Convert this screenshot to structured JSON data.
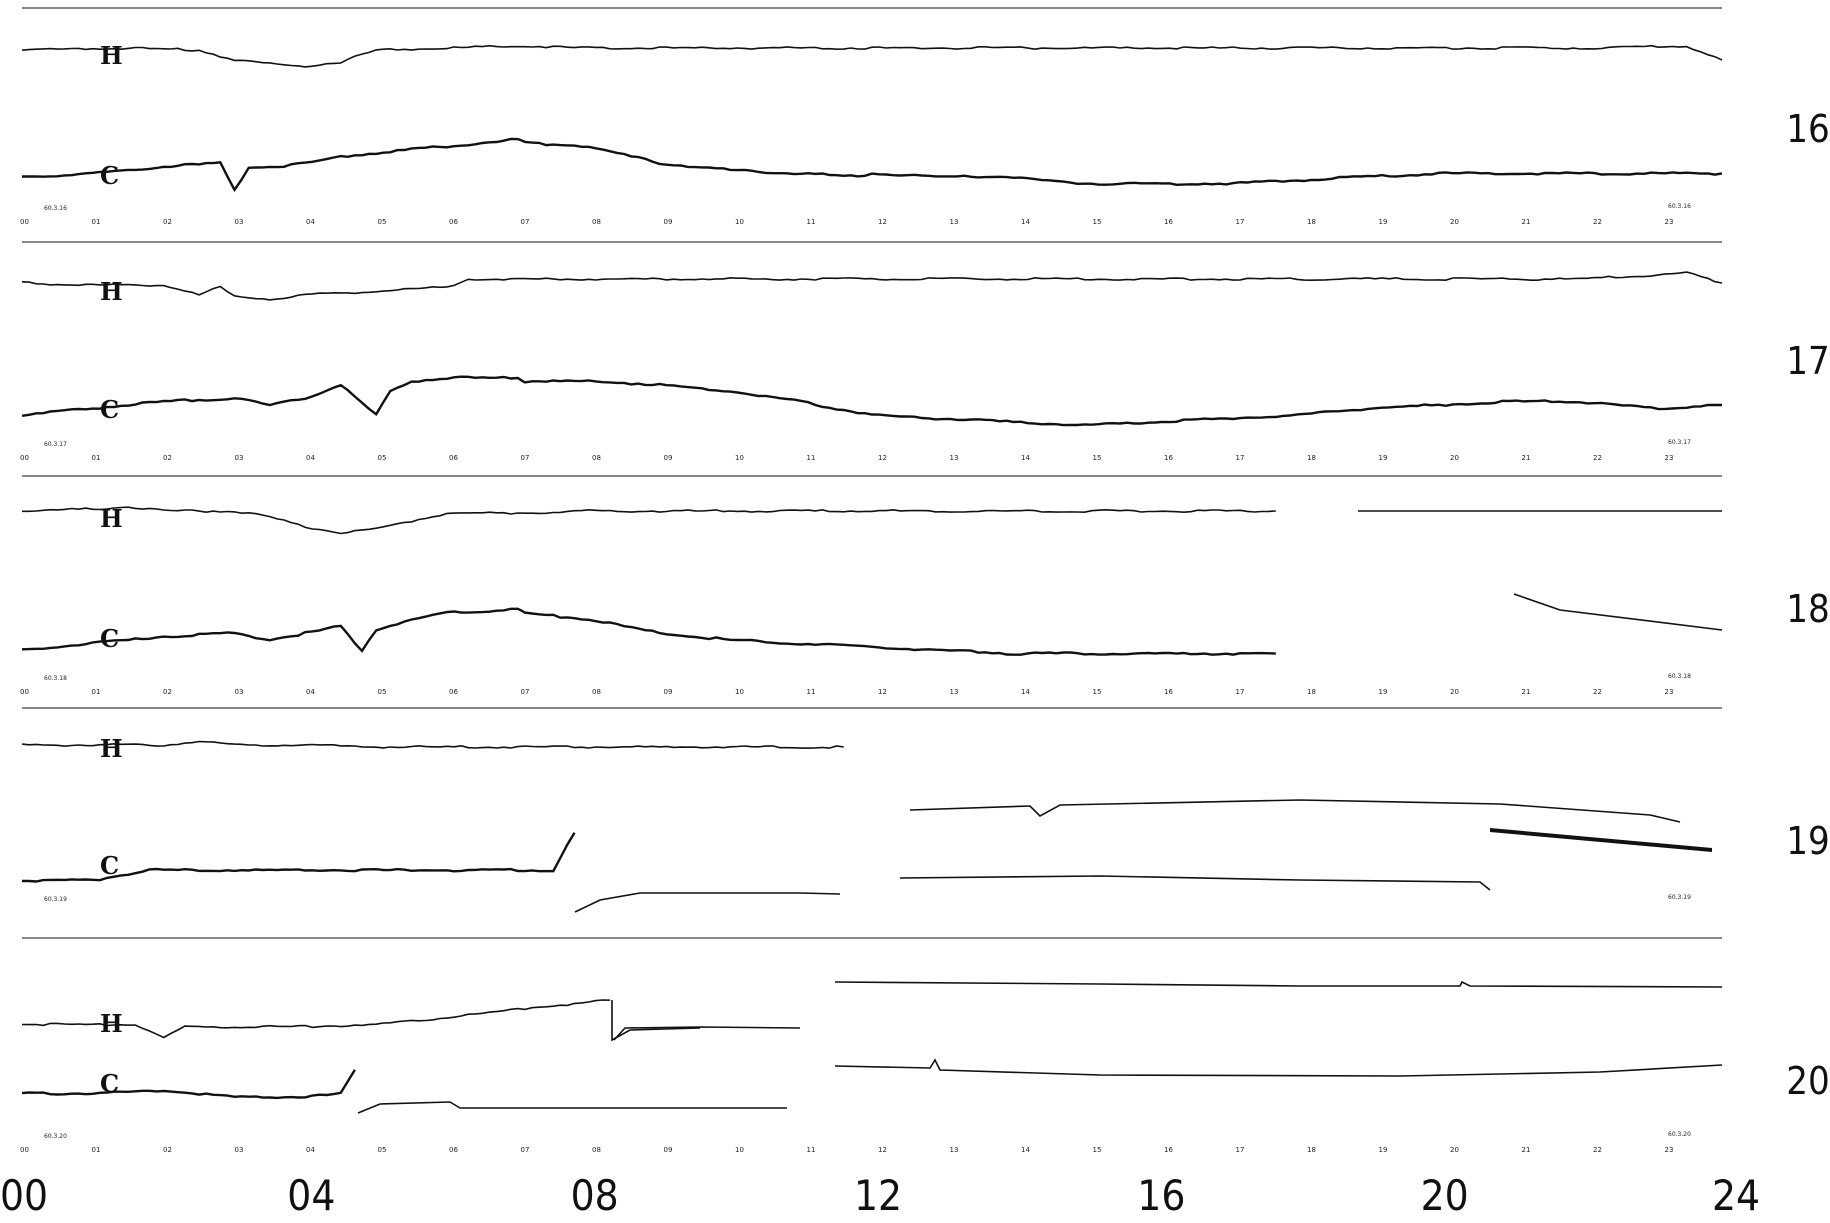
{
  "chart_data": {
    "type": "line",
    "title": "",
    "xlabel": "",
    "ylabel": "",
    "x_range": [
      0,
      24
    ],
    "grid": false,
    "legend": "none",
    "x_ticks": [
      "00",
      "04",
      "08",
      "12",
      "16",
      "20",
      "24"
    ],
    "x_tick_values": [
      0,
      4,
      8,
      12,
      16,
      20,
      24
    ],
    "days": [
      {
        "day": "16",
        "date_start": "60.3.16",
        "date_end": "60.3.16",
        "hour_ticks": [
          "00",
          "01",
          "02",
          "03",
          "04",
          "05",
          "06",
          "07",
          "08",
          "09",
          "10",
          "11",
          "12",
          "13",
          "14",
          "15",
          "16",
          "17",
          "18",
          "19",
          "20",
          "21",
          "22",
          "23"
        ],
        "series": [
          {
            "name": "H",
            "x": [
              0,
              1.5,
              2.5,
              3.0,
              3.5,
              4.0,
              4.5,
              5.0,
              6.0,
              7.0,
              8.0,
              10,
              12,
              14,
              16,
              18,
              20,
              22,
              23.5,
              24
            ],
            "y": [
              0.45,
              0.5,
              0.45,
              0.2,
              0.1,
              0.05,
              0.15,
              0.45,
              0.5,
              0.55,
              0.5,
              0.5,
              0.5,
              0.5,
              0.5,
              0.5,
              0.5,
              0.5,
              0.55,
              0.2
            ]
          },
          {
            "name": "C",
            "x": [
              0,
              1,
              2,
              2.8,
              3.0,
              3.2,
              3.6,
              4.0,
              4.5,
              5.0,
              6.0,
              7.0,
              7.1,
              8.0,
              9.0,
              10,
              11,
              11.8,
              12,
              13,
              14,
              14.4,
              15,
              16,
              17,
              18,
              19,
              20,
              21,
              22,
              23,
              24
            ],
            "y": [
              0.4,
              0.45,
              0.55,
              0.6,
              0.2,
              0.55,
              0.55,
              0.6,
              0.7,
              0.75,
              0.85,
              0.95,
              0.9,
              0.85,
              0.6,
              0.5,
              0.45,
              0.4,
              0.45,
              0.4,
              0.4,
              0.35,
              0.3,
              0.3,
              0.3,
              0.35,
              0.4,
              0.45,
              0.45,
              0.45,
              0.45,
              0.45
            ]
          }
        ]
      },
      {
        "day": "17",
        "date_start": "60.3.17",
        "date_end": "60.3.17",
        "hour_ticks": [
          "00",
          "01",
          "02",
          "03",
          "04",
          "05",
          "06",
          "07",
          "08",
          "09",
          "10",
          "11",
          "12",
          "13",
          "14",
          "15",
          "16",
          "17",
          "18",
          "19",
          "20",
          "21",
          "22",
          "23"
        ],
        "series": [
          {
            "name": "H",
            "x": [
              0,
              1,
              2,
              2.5,
              2.8,
              3.0,
              3.5,
              4.0,
              5.0,
              6.0,
              6.3,
              8,
              10,
              12,
              14,
              16,
              18,
              20,
              22,
              23.5,
              24
            ],
            "y": [
              0.5,
              0.45,
              0.45,
              0.2,
              0.4,
              0.15,
              0.1,
              0.2,
              0.3,
              0.4,
              0.6,
              0.6,
              0.6,
              0.6,
              0.6,
              0.6,
              0.6,
              0.6,
              0.6,
              0.75,
              0.5
            ]
          },
          {
            "name": "C",
            "x": [
              0,
              1,
              2,
              3,
              3.5,
              4,
              4.5,
              5.0,
              5.2,
              5.5,
              6,
              7,
              7.1,
              8,
              9,
              10,
              11,
              12,
              13,
              14,
              15,
              16,
              17,
              18,
              19,
              20,
              21,
              22,
              23,
              24
            ],
            "y": [
              0.35,
              0.45,
              0.55,
              0.6,
              0.5,
              0.6,
              0.8,
              0.35,
              0.7,
              0.85,
              0.9,
              0.9,
              0.85,
              0.85,
              0.8,
              0.7,
              0.55,
              0.35,
              0.3,
              0.25,
              0.2,
              0.25,
              0.3,
              0.35,
              0.45,
              0.5,
              0.55,
              0.55,
              0.45,
              0.5
            ]
          }
        ]
      },
      {
        "day": "18",
        "date_start": "60.3.18",
        "date_end": "60.3.18",
        "hour_ticks": [
          "00",
          "01",
          "02",
          "03",
          "04",
          "05",
          "06",
          "07",
          "08",
          "09",
          "10",
          "11",
          "12",
          "13",
          "14",
          "15",
          "16",
          "17",
          "18",
          "19",
          "20",
          "21",
          "22",
          "23"
        ],
        "series": [
          {
            "name": "H",
            "x": [
              0,
              1,
              1.5,
              2,
              3,
              3.5,
              4,
              4.5,
              5,
              5.5,
              6,
              7,
              8,
              9,
              10,
              12,
              14,
              16,
              17.7
            ],
            "y": [
              0.6,
              0.65,
              0.7,
              0.6,
              0.6,
              0.45,
              0.2,
              0.05,
              0.15,
              0.35,
              0.55,
              0.55,
              0.6,
              0.6,
              0.6,
              0.6,
              0.6,
              0.6,
              0.6
            ]
          },
          {
            "name": "C",
            "x": [
              0,
              1,
              2,
              3,
              3.5,
              4,
              4.5,
              4.8,
              5,
              5.5,
              6,
              7,
              7.1,
              8,
              9,
              10,
              11,
              12,
              13,
              14,
              15,
              16,
              17,
              17.7
            ],
            "y": [
              0.35,
              0.45,
              0.55,
              0.6,
              0.5,
              0.6,
              0.7,
              0.35,
              0.65,
              0.8,
              0.9,
              0.95,
              0.9,
              0.8,
              0.6,
              0.5,
              0.45,
              0.4,
              0.35,
              0.3,
              0.3,
              0.3,
              0.3,
              0.3
            ]
          }
        ]
      },
      {
        "day": "19",
        "date_start": "60.3.19",
        "date_end": "60.3.19",
        "hour_ticks": [],
        "series": [
          {
            "name": "H",
            "x": [
              0,
              1,
              2,
              2.5,
              3,
              4,
              5,
              6,
              8,
              10,
              11.6
            ],
            "y": [
              0.5,
              0.5,
              0.5,
              0.6,
              0.5,
              0.5,
              0.45,
              0.45,
              0.45,
              0.45,
              0.45
            ]
          },
          {
            "name": "C",
            "x": [
              0,
              1,
              1.8,
              2,
              4,
              6,
              7.5,
              7.8
            ],
            "y": [
              0.2,
              0.2,
              0.35,
              0.35,
              0.35,
              0.35,
              0.35,
              0.9
            ]
          }
        ]
      },
      {
        "day": "20",
        "date_start": "60.3.20",
        "date_end": "60.3.20",
        "hour_ticks": [
          "00",
          "01",
          "02",
          "03",
          "04",
          "05",
          "06",
          "07",
          "08",
          "09",
          "10",
          "11",
          "12",
          "13",
          "14",
          "15",
          "16",
          "17",
          "18",
          "19",
          "20",
          "21",
          "22",
          "23"
        ],
        "series": [
          {
            "name": "H",
            "x": [
              0,
              1,
              1.6,
              2,
              2.3,
              4,
              5,
              6,
              7,
              8.3
            ],
            "y": [
              0.4,
              0.4,
              0.4,
              0.1,
              0.35,
              0.35,
              0.4,
              0.55,
              0.75,
              0.95
            ]
          },
          {
            "name": "C",
            "x": [
              0,
              1,
              2,
              3,
              4,
              4.5,
              4.7
            ],
            "y": [
              0.3,
              0.3,
              0.35,
              0.25,
              0.25,
              0.3,
              0.65
            ]
          }
        ]
      }
    ],
    "day_labels": [
      "16",
      "17",
      "18",
      "19",
      "20"
    ],
    "trace_labels": [
      "H",
      "C"
    ]
  }
}
